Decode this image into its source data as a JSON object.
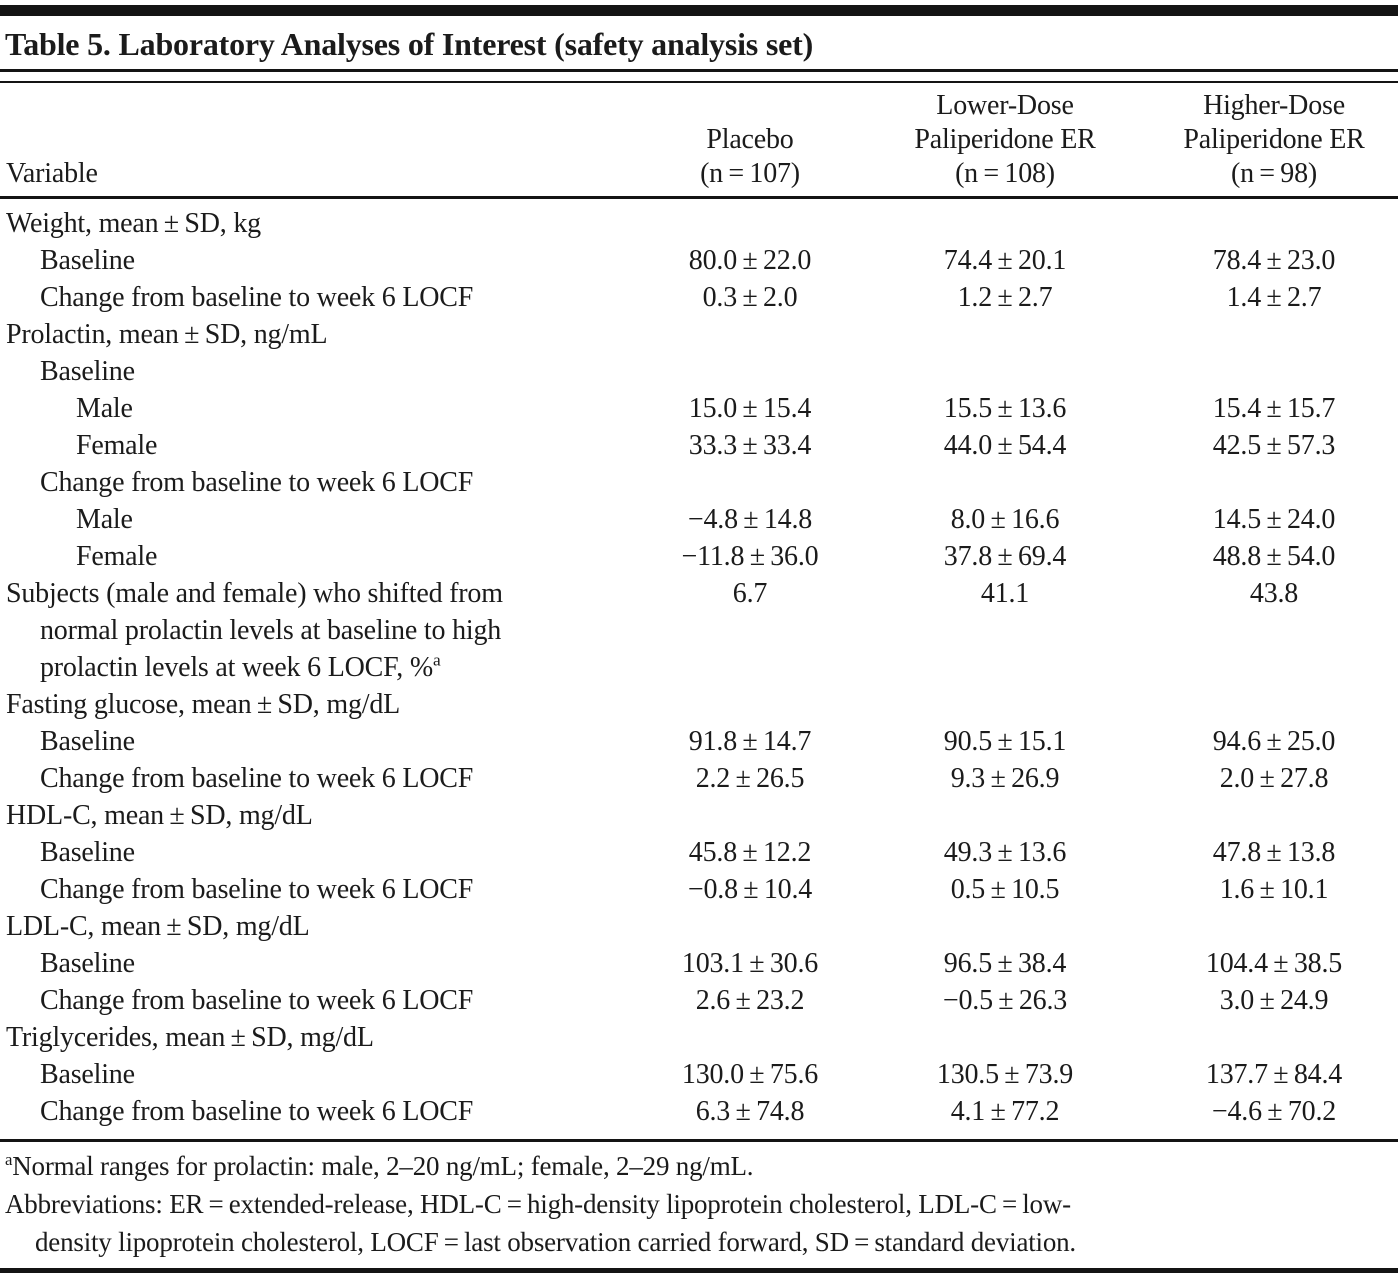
{
  "colors": {
    "ink": "#1b1b1b",
    "rule": "#141414",
    "background": "#ffffff"
  },
  "table": {
    "title": "Table 5. Laboratory Analyses of Interest (safety analysis set)",
    "header": {
      "variable_label": "Variable",
      "placebo": [
        "Placebo",
        "(n = 107)"
      ],
      "lower": [
        "Lower-Dose",
        "Paliperidone ER",
        "(n = 108)"
      ],
      "higher": [
        "Higher-Dose",
        "Paliperidone ER",
        "(n = 98)"
      ]
    },
    "rows": [
      {
        "label": "Weight, mean ± SD, kg",
        "indent": 0,
        "values": null
      },
      {
        "label": "Baseline",
        "indent": 1,
        "values": [
          "80.0 ± 22.0",
          "74.4 ± 20.1",
          "78.4 ± 23.0"
        ]
      },
      {
        "label": "Change from baseline to week 6 LOCF",
        "indent": 1,
        "values": [
          "0.3 ± 2.0",
          "1.2 ± 2.7",
          "1.4 ± 2.7"
        ]
      },
      {
        "label": "Prolactin, mean ± SD, ng/mL",
        "indent": 0,
        "values": null
      },
      {
        "label": "Baseline",
        "indent": 1,
        "values": null
      },
      {
        "label": "Male",
        "indent": 2,
        "values": [
          "15.0 ± 15.4",
          "15.5 ± 13.6",
          "15.4 ± 15.7"
        ]
      },
      {
        "label": "Female",
        "indent": 2,
        "values": [
          "33.3 ± 33.4",
          "44.0 ± 54.4",
          "42.5 ± 57.3"
        ]
      },
      {
        "label": "Change from baseline to week 6 LOCF",
        "indent": 1,
        "values": null
      },
      {
        "label": "Male",
        "indent": 2,
        "values": [
          "−4.8 ± 14.8",
          "8.0 ± 16.6",
          "14.5 ± 24.0"
        ]
      },
      {
        "label": "Female",
        "indent": 2,
        "values": [
          "−11.8 ± 36.0",
          "37.8 ± 69.4",
          "48.8 ± 54.0"
        ]
      },
      {
        "lines": [
          "Subjects (male and female) who shifted from",
          "normal prolactin levels at baseline to high",
          "prolactin levels at week 6 LOCF, %"
        ],
        "sup": "a",
        "indent": 0,
        "values": [
          "6.7",
          "41.1",
          "43.8"
        ]
      },
      {
        "label": "Fasting glucose, mean ± SD, mg/dL",
        "indent": 0,
        "values": null
      },
      {
        "label": "Baseline",
        "indent": 1,
        "values": [
          "91.8 ± 14.7",
          "90.5 ± 15.1",
          "94.6 ± 25.0"
        ]
      },
      {
        "label": "Change from baseline to week 6 LOCF",
        "indent": 1,
        "values": [
          "2.2 ± 26.5",
          "9.3 ± 26.9",
          "2.0 ± 27.8"
        ]
      },
      {
        "label": "HDL-C, mean ± SD, mg/dL",
        "indent": 0,
        "values": null
      },
      {
        "label": "Baseline",
        "indent": 1,
        "values": [
          "45.8 ± 12.2",
          "49.3 ± 13.6",
          "47.8 ± 13.8"
        ]
      },
      {
        "label": "Change from baseline to week 6 LOCF",
        "indent": 1,
        "values": [
          "−0.8 ± 10.4",
          "0.5 ± 10.5",
          "1.6 ± 10.1"
        ]
      },
      {
        "label": "LDL-C, mean ± SD, mg/dL",
        "indent": 0,
        "values": null
      },
      {
        "label": "Baseline",
        "indent": 1,
        "values": [
          "103.1 ± 30.6",
          "96.5 ± 38.4",
          "104.4 ± 38.5"
        ]
      },
      {
        "label": "Change from baseline to week 6 LOCF",
        "indent": 1,
        "values": [
          "2.6 ± 23.2",
          "−0.5 ± 26.3",
          "3.0 ± 24.9"
        ]
      },
      {
        "label": "Triglycerides, mean ± SD, mg/dL",
        "indent": 0,
        "values": null
      },
      {
        "label": "Baseline",
        "indent": 1,
        "values": [
          "130.0 ± 75.6",
          "130.5 ± 73.9",
          "137.7 ± 84.4"
        ]
      },
      {
        "label": "Change from baseline to week 6 LOCF",
        "indent": 1,
        "values": [
          "6.3 ± 74.8",
          "4.1 ± 77.2",
          "−4.6 ± 70.2"
        ]
      }
    ],
    "footnotes": {
      "prolactin": {
        "marker": "a",
        "text": "Normal ranges for prolactin: male, 2–20 ng/mL; female, 2–29 ng/mL."
      },
      "abbreviations": [
        "Abbreviations: ER = extended-release, HDL-C = high-density lipoprotein cholesterol, LDL-C = low-",
        "density lipoprotein cholesterol, LOCF = last observation carried forward, SD = standard deviation."
      ]
    }
  }
}
